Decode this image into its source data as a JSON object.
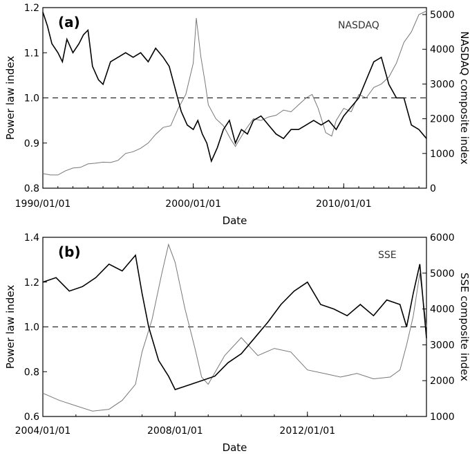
{
  "chart_data": [
    {
      "type": "line",
      "panel_label": "(a)",
      "index_name": "NASDAQ",
      "xlabel": "Date",
      "ylabel_left": "Power law index",
      "ylabel_right": "NASDAQ composite index",
      "x_ticks": [
        "1990/01/01",
        "2000/01/01",
        "2010/01/01"
      ],
      "x_tick_years": [
        1990,
        2000,
        2010
      ],
      "xlim_years": [
        1990.0,
        2015.5
      ],
      "y_left_ticks": [
        "0.8",
        "0.9",
        "1.0",
        "1.1",
        "1.2"
      ],
      "ylim_left": [
        0.8,
        1.2
      ],
      "y_right_ticks": [
        "0",
        "1000",
        "2000",
        "3000",
        "4000",
        "5000"
      ],
      "ylim_right": [
        0,
        5200
      ],
      "reference_line": 1.0,
      "grid": false,
      "series": [
        {
          "name": "Power law index",
          "axis": "left",
          "color": "#000000",
          "x": [
            1990.0,
            1990.3,
            1990.6,
            1991.0,
            1991.3,
            1991.6,
            1992.0,
            1992.4,
            1992.7,
            1993.0,
            1993.3,
            1993.7,
            1994.0,
            1994.5,
            1995.0,
            1995.5,
            1996.0,
            1996.5,
            1997.0,
            1997.5,
            1998.0,
            1998.4,
            1998.8,
            1999.2,
            1999.6,
            2000.0,
            2000.3,
            2000.6,
            2000.9,
            2001.2,
            2001.6,
            2002.0,
            2002.4,
            2002.8,
            2003.2,
            2003.6,
            2004.0,
            2004.5,
            2005.0,
            2005.5,
            2006.0,
            2006.5,
            2007.0,
            2007.5,
            2008.0,
            2008.5,
            2009.0,
            2009.5,
            2010.0,
            2010.5,
            2011.0,
            2011.5,
            2012.0,
            2012.5,
            2013.0,
            2013.5,
            2014.0,
            2014.5,
            2015.0,
            2015.5
          ],
          "values": [
            1.19,
            1.16,
            1.12,
            1.1,
            1.08,
            1.13,
            1.1,
            1.12,
            1.14,
            1.15,
            1.07,
            1.04,
            1.03,
            1.08,
            1.09,
            1.1,
            1.09,
            1.1,
            1.08,
            1.11,
            1.09,
            1.07,
            1.02,
            0.97,
            0.94,
            0.93,
            0.95,
            0.92,
            0.9,
            0.86,
            0.89,
            0.93,
            0.95,
            0.9,
            0.93,
            0.92,
            0.95,
            0.96,
            0.94,
            0.92,
            0.91,
            0.93,
            0.93,
            0.94,
            0.95,
            0.94,
            0.95,
            0.93,
            0.96,
            0.98,
            1.0,
            1.04,
            1.08,
            1.09,
            1.03,
            1.0,
            1.0,
            0.94,
            0.93,
            0.91
          ]
        },
        {
          "name": "NASDAQ composite index",
          "axis": "right",
          "color": "#777777",
          "x": [
            1990.0,
            1990.5,
            1991.0,
            1991.5,
            1992.0,
            1992.5,
            1993.0,
            1993.5,
            1994.0,
            1994.5,
            1995.0,
            1995.5,
            1996.0,
            1996.5,
            1997.0,
            1997.5,
            1998.0,
            1998.5,
            1999.0,
            1999.5,
            2000.0,
            2000.2,
            2000.5,
            2000.8,
            2001.0,
            2001.5,
            2002.0,
            2002.5,
            2002.8,
            2003.0,
            2003.5,
            2004.0,
            2004.5,
            2005.0,
            2005.5,
            2006.0,
            2006.5,
            2007.0,
            2007.5,
            2007.9,
            2008.3,
            2008.8,
            2009.2,
            2009.5,
            2010.0,
            2010.5,
            2011.0,
            2011.5,
            2012.0,
            2012.5,
            2013.0,
            2013.5,
            2014.0,
            2014.5,
            2015.0,
            2015.5
          ],
          "values": [
            420,
            380,
            380,
            500,
            580,
            600,
            700,
            720,
            750,
            740,
            800,
            1000,
            1050,
            1150,
            1300,
            1550,
            1750,
            1800,
            2300,
            2700,
            3600,
            4900,
            3800,
            3000,
            2400,
            2000,
            1800,
            1400,
            1200,
            1350,
            1700,
            2000,
            1950,
            2050,
            2100,
            2250,
            2200,
            2400,
            2600,
            2700,
            2300,
            1600,
            1500,
            1950,
            2300,
            2200,
            2700,
            2600,
            2900,
            3000,
            3200,
            3600,
            4200,
            4500,
            5000,
            5100
          ]
        }
      ]
    },
    {
      "type": "line",
      "panel_label": "(b)",
      "index_name": "SSE",
      "xlabel": "Date",
      "ylabel_left": "Power law index",
      "ylabel_right": "SSE composite index",
      "x_ticks": [
        "2004/01/01",
        "2008/01/01",
        "2012/01/01"
      ],
      "x_tick_years": [
        2004,
        2008,
        2012
      ],
      "xlim_years": [
        2004.0,
        2015.6
      ],
      "y_left_ticks": [
        "0.6",
        "0.8",
        "1.0",
        "1.2",
        "1.4"
      ],
      "ylim_left": [
        0.6,
        1.4
      ],
      "y_right_ticks": [
        "1000",
        "2000",
        "3000",
        "4000",
        "5000",
        "6000"
      ],
      "ylim_right": [
        1000,
        6000
      ],
      "reference_line": 1.0,
      "grid": false,
      "series": [
        {
          "name": "Power law index",
          "axis": "left",
          "color": "#000000",
          "x": [
            2004.0,
            2004.4,
            2004.8,
            2005.2,
            2005.6,
            2006.0,
            2006.4,
            2006.8,
            2007.0,
            2007.2,
            2007.5,
            2007.8,
            2008.0,
            2008.4,
            2008.8,
            2009.2,
            2009.6,
            2010.0,
            2010.4,
            2010.8,
            2011.2,
            2011.6,
            2012.0,
            2012.4,
            2012.8,
            2013.2,
            2013.6,
            2014.0,
            2014.4,
            2014.8,
            2015.0,
            2015.2,
            2015.4,
            2015.6
          ],
          "values": [
            1.2,
            1.22,
            1.16,
            1.18,
            1.22,
            1.28,
            1.25,
            1.32,
            1.15,
            1.0,
            0.85,
            0.78,
            0.72,
            0.74,
            0.76,
            0.78,
            0.84,
            0.88,
            0.95,
            1.02,
            1.1,
            1.16,
            1.2,
            1.1,
            1.08,
            1.05,
            1.1,
            1.05,
            1.12,
            1.1,
            1.0,
            1.15,
            1.28,
            0.95
          ]
        },
        {
          "name": "SSE composite index",
          "axis": "right",
          "color": "#777777",
          "x": [
            2004.0,
            2004.5,
            2005.0,
            2005.5,
            2006.0,
            2006.4,
            2006.8,
            2007.0,
            2007.3,
            2007.6,
            2007.8,
            2008.0,
            2008.3,
            2008.6,
            2008.8,
            2009.0,
            2009.5,
            2010.0,
            2010.5,
            2011.0,
            2011.5,
            2012.0,
            2012.5,
            2013.0,
            2013.5,
            2014.0,
            2014.5,
            2014.8,
            2015.0,
            2015.2,
            2015.4,
            2015.6
          ],
          "values": [
            1650,
            1450,
            1300,
            1150,
            1200,
            1450,
            1900,
            2800,
            3700,
            5000,
            5800,
            5300,
            4000,
            2900,
            2100,
            1900,
            2700,
            3200,
            2700,
            2900,
            2800,
            2300,
            2200,
            2100,
            2200,
            2050,
            2100,
            2300,
            3000,
            3800,
            5000,
            3500
          ]
        }
      ]
    }
  ]
}
